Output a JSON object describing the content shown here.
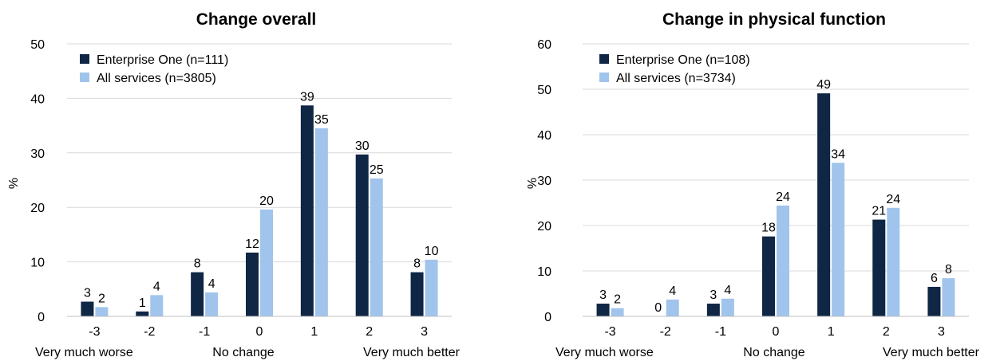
{
  "chart_data": [
    {
      "type": "bar",
      "title": "Change overall",
      "ylabel": "%",
      "ylim": [
        0,
        50
      ],
      "yticks": [
        0,
        10,
        20,
        30,
        40,
        50
      ],
      "categories": [
        "-3",
        "-2",
        "-1",
        "0",
        "1",
        "2",
        "3"
      ],
      "category_captions": [
        "Very much worse",
        "No change",
        "Very much better"
      ],
      "series": [
        {
          "name": "Enterprise One (n=111)",
          "color": "#0f2645",
          "values": [
            2.7,
            0.9,
            8.1,
            11.7,
            38.7,
            29.7,
            8.1
          ],
          "labels": [
            "3",
            "1",
            "8",
            "12",
            "39",
            "30",
            "8"
          ]
        },
        {
          "name": "All services (n=3805)",
          "color": "#a0c4ec",
          "values": [
            1.7,
            3.9,
            4.4,
            19.6,
            34.5,
            25.3,
            10.4
          ],
          "labels": [
            "2",
            "4",
            "4",
            "20",
            "35",
            "25",
            "10"
          ]
        }
      ],
      "grid": true,
      "legend": "top-left"
    },
    {
      "type": "bar",
      "title": "Change in physical function",
      "ylabel": "%",
      "ylim": [
        0,
        60
      ],
      "yticks": [
        0,
        10,
        20,
        30,
        40,
        50,
        60
      ],
      "categories": [
        "-3",
        "-2",
        "-1",
        "0",
        "1",
        "2",
        "3"
      ],
      "category_captions": [
        "Very much worse",
        "No change",
        "Very much better"
      ],
      "series": [
        {
          "name": "Enterprise One (n=108)",
          "color": "#0f2645",
          "values": [
            2.8,
            0,
            2.8,
            17.6,
            49.1,
            21.3,
            6.5
          ],
          "labels": [
            "3",
            "0",
            "3",
            "18",
            "49",
            "21",
            "6"
          ]
        },
        {
          "name": "All services (n=3734)",
          "color": "#a0c4ec",
          "values": [
            1.8,
            3.7,
            3.9,
            24.4,
            33.8,
            23.9,
            8.4
          ],
          "labels": [
            "2",
            "4",
            "4",
            "24",
            "34",
            "24",
            "8"
          ]
        }
      ],
      "grid": true,
      "legend": "top-left"
    }
  ]
}
